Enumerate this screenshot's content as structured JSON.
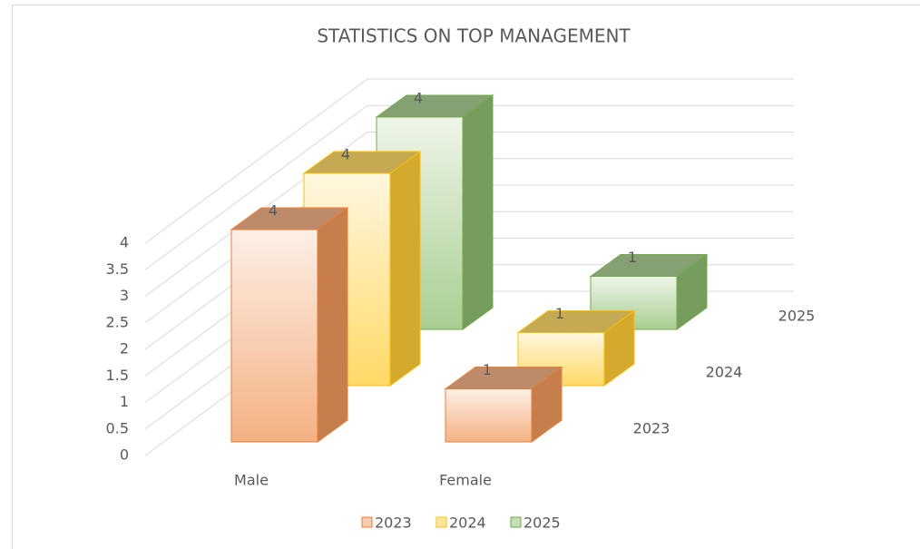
{
  "chart_data": {
    "type": "bar3d",
    "title": "STATISTICS ON TOP MANAGEMENT",
    "categories": [
      "Male",
      "Female"
    ],
    "series": [
      {
        "name": "2023",
        "color": "#ed7d31",
        "values": [
          4,
          1
        ]
      },
      {
        "name": "2024",
        "color": "#ffc000",
        "values": [
          4,
          1
        ]
      },
      {
        "name": "2025",
        "color": "#70ad47",
        "values": [
          4,
          1
        ]
      }
    ],
    "ylim": [
      0,
      4
    ],
    "yticks": [
      0,
      0.5,
      1,
      1.5,
      2,
      2.5,
      3,
      3.5,
      4
    ],
    "grid": true,
    "legend": "bottom"
  }
}
